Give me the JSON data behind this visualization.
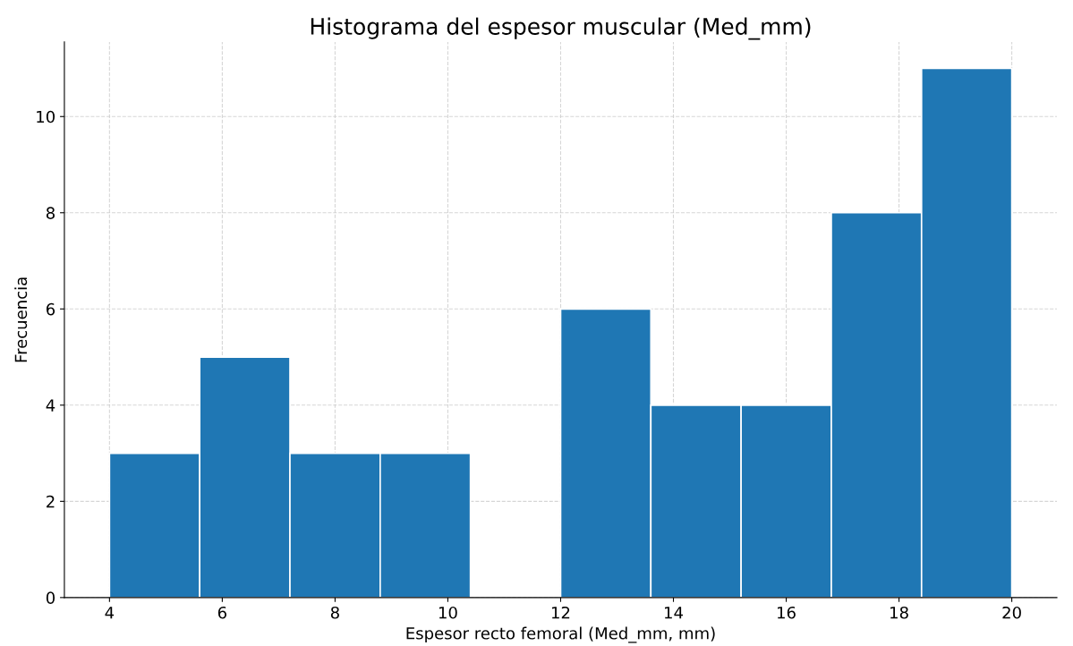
{
  "chart_data": {
    "type": "histogram",
    "title": "Histograma del espesor muscular (Med_mm)",
    "xlabel": "Espesor recto femoral (Med_mm, mm)",
    "ylabel": "Frecuencia",
    "bins": [
      4,
      5.6,
      7.2,
      8.8,
      10.4,
      12,
      13.6,
      15.2,
      16.8,
      18.4,
      20
    ],
    "values": [
      3,
      5,
      3,
      3,
      0,
      6,
      4,
      4,
      8,
      11
    ],
    "color": "#1f77b4",
    "xlim": [
      3.2,
      20.8
    ],
    "xticks": [
      4,
      6,
      8,
      10,
      12,
      14,
      16,
      18,
      20
    ],
    "ylim": [
      0,
      11.55
    ],
    "yticks": [
      0,
      2,
      4,
      6,
      8,
      10
    ],
    "grid": true
  }
}
